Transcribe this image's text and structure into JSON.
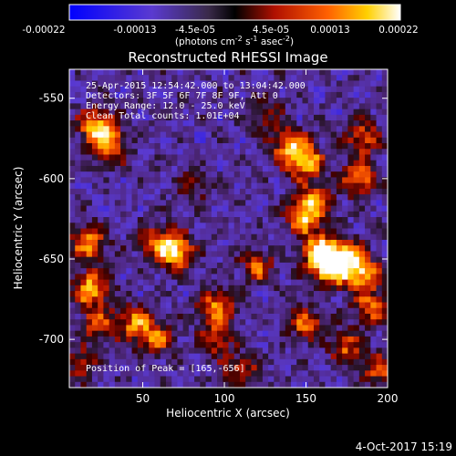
{
  "chart_data": {
    "type": "heatmap",
    "title": "Reconstructed RHESSI Image",
    "xlabel": "Heliocentric X (arcsec)",
    "ylabel": "Heliocentric Y (arcsec)",
    "xlim": [
      5,
      200
    ],
    "ylim": [
      -730,
      -532
    ],
    "x_ticks": [
      50,
      100,
      150,
      200
    ],
    "y_ticks": [
      -550,
      -600,
      -650,
      -700
    ],
    "colorbar": {
      "ticks": [
        "-0.00022",
        "-0.00013",
        "-4.5e-05",
        "4.5e-05",
        "0.00013",
        "0.00022"
      ],
      "units_line": "(photons cm",
      "units_exp1": "-2",
      "units_mid": " s",
      "units_exp2": "-1",
      "units_mid2": " asec",
      "units_exp3": "-2",
      "units_end": ")"
    },
    "annotations": {
      "time_range": "25-Apr-2015 12:54:42.000 to 13:04:42.000",
      "detectors": "Detectors: 3F 5F 6F 7F 8F 9F, Att 0",
      "energy": "Energy Range: 12.0 - 25.0 keV",
      "clean": "Clean   Total counts: 1.01E+04",
      "peak": "Position of Peak = [165,-656]"
    },
    "peak": {
      "x": 165,
      "y": -656
    },
    "hotspots": [
      {
        "x": 22,
        "y": -567,
        "v": 0.85
      },
      {
        "x": 30,
        "y": -580,
        "v": 0.7
      },
      {
        "x": 17,
        "y": -640,
        "v": 0.7
      },
      {
        "x": 18,
        "y": -668,
        "v": 0.8
      },
      {
        "x": 22,
        "y": -690,
        "v": 0.55
      },
      {
        "x": 70,
        "y": -645,
        "v": 0.9
      },
      {
        "x": 58,
        "y": -640,
        "v": 0.55
      },
      {
        "x": 45,
        "y": -690,
        "v": 0.65
      },
      {
        "x": 58,
        "y": -700,
        "v": 0.55
      },
      {
        "x": 95,
        "y": -680,
        "v": 0.7
      },
      {
        "x": 95,
        "y": -700,
        "v": 0.5
      },
      {
        "x": 120,
        "y": -655,
        "v": 0.55
      },
      {
        "x": 140,
        "y": -580,
        "v": 0.75
      },
      {
        "x": 150,
        "y": -590,
        "v": 0.8
      },
      {
        "x": 155,
        "y": -615,
        "v": 0.7
      },
      {
        "x": 148,
        "y": -625,
        "v": 0.6
      },
      {
        "x": 158,
        "y": -645,
        "v": 0.85
      },
      {
        "x": 165,
        "y": -656,
        "v": 1.0
      },
      {
        "x": 175,
        "y": -648,
        "v": 0.8
      },
      {
        "x": 182,
        "y": -600,
        "v": 0.7
      },
      {
        "x": 185,
        "y": -575,
        "v": 0.6
      },
      {
        "x": 185,
        "y": -660,
        "v": 0.75
      },
      {
        "x": 190,
        "y": -680,
        "v": 0.6
      },
      {
        "x": 150,
        "y": -690,
        "v": 0.6
      },
      {
        "x": 175,
        "y": -705,
        "v": 0.55
      },
      {
        "x": 110,
        "y": -720,
        "v": 0.5
      },
      {
        "x": 195,
        "y": -720,
        "v": 0.55
      },
      {
        "x": 12,
        "y": -715,
        "v": 0.45
      },
      {
        "x": 125,
        "y": -560,
        "v": 0.35
      },
      {
        "x": 80,
        "y": -605,
        "v": 0.3
      }
    ]
  },
  "footer": {
    "date": "4-Oct-2017 15:19"
  }
}
